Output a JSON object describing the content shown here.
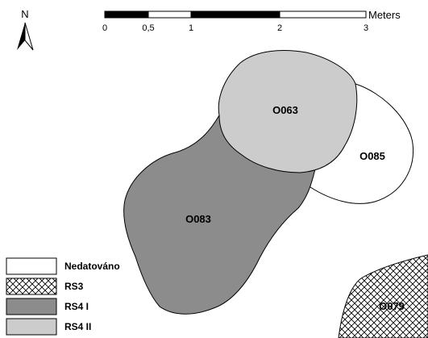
{
  "north_arrow": {
    "label": "N"
  },
  "scale_bar": {
    "unit": "Meters",
    "ticks": [
      "0",
      "0,5",
      "1",
      "2",
      "3"
    ]
  },
  "features": [
    {
      "code": "O063",
      "class": "RS4 II"
    },
    {
      "code": "O083",
      "class": "RS4 I"
    },
    {
      "code": "O085",
      "class": "Nedatováno"
    },
    {
      "code": "O079",
      "class": "RS3"
    }
  ],
  "legend": {
    "items": [
      {
        "label": "Nedatováno",
        "fill": "#ffffff"
      },
      {
        "label": "RS3",
        "fill": "crosshatch"
      },
      {
        "label": "RS4 I",
        "fill": "#8c8c8c"
      },
      {
        "label": "RS4 II",
        "fill": "#cccccc"
      }
    ]
  }
}
